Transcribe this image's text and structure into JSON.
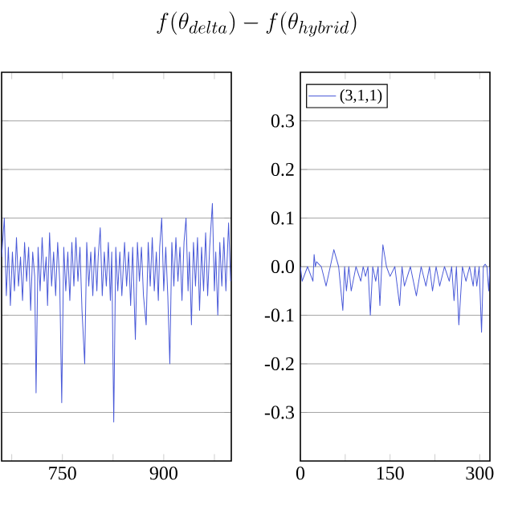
{
  "chart_data": [
    {
      "type": "line",
      "title": "f(\\theta_{delta})-f(\\theta_{hybrid})",
      "xlim": [
        660,
        1000
      ],
      "ylim": [
        -0.4,
        0.4
      ],
      "xticks": [
        {
          "value": 675,
          "label": null
        },
        750,
        {
          "value": 825,
          "label": null
        },
        900,
        {
          "value": 975,
          "label": null
        }
      ],
      "yticks": [
        -0.3,
        -0.2,
        -0.1,
        0,
        0.1,
        0.2,
        0.3
      ],
      "tick_labels": "x",
      "grid": "y",
      "marker": "none",
      "line_style": "solid",
      "series": [
        {
          "color": "#4a5ad8",
          "x": [
            660,
            664,
            667,
            670,
            673,
            676,
            679,
            682,
            685,
            688,
            691,
            694,
            697,
            700,
            703,
            706,
            709,
            711,
            714,
            717,
            720,
            723,
            726,
            728,
            731,
            734,
            737,
            740,
            743,
            746,
            749,
            752,
            755,
            758,
            761,
            764,
            767,
            770,
            773,
            776,
            779,
            783,
            786,
            789,
            792,
            795,
            798,
            801,
            803,
            806,
            809,
            812,
            815,
            818,
            821,
            823,
            826,
            829,
            832,
            835,
            838,
            842,
            845,
            848,
            851,
            854,
            858,
            861,
            864,
            867,
            870,
            874,
            877,
            880,
            883,
            886,
            889,
            892,
            894,
            897,
            900,
            903,
            906,
            909,
            912,
            915,
            918,
            921,
            924,
            927,
            930,
            933,
            936,
            938,
            941,
            944,
            947,
            950,
            953,
            956,
            959,
            962,
            965,
            968,
            972,
            975,
            977,
            980,
            983,
            986,
            989,
            992,
            996,
            999
          ],
          "values": [
            0.02,
            0.1,
            -0.06,
            0.04,
            -0.08,
            0.03,
            -0.05,
            0.06,
            -0.04,
            0.02,
            -0.07,
            0.05,
            -0.03,
            0.04,
            -0.09,
            0.03,
            -0.02,
            -0.26,
            0.04,
            -0.05,
            0.06,
            -0.03,
            0.02,
            -0.08,
            0.07,
            -0.04,
            0.03,
            -0.06,
            0.05,
            -0.03,
            -0.28,
            0.04,
            -0.05,
            0.03,
            -0.07,
            0.05,
            -0.04,
            0.06,
            -0.03,
            0.04,
            -0.09,
            -0.2,
            0.05,
            -0.04,
            0.03,
            -0.06,
            0.04,
            -0.05,
            0.02,
            0.08,
            -0.06,
            0.03,
            -0.04,
            0.05,
            -0.07,
            0.03,
            -0.32,
            0.04,
            -0.05,
            0.03,
            -0.06,
            0.05,
            -0.04,
            0.03,
            -0.08,
            0.04,
            -0.15,
            0.05,
            -0.03,
            0.04,
            -0.06,
            -0.12,
            0.05,
            -0.04,
            0.06,
            -0.05,
            0.03,
            -0.07,
            0.04,
            0.1,
            -0.05,
            0.04,
            -0.06,
            -0.2,
            0.05,
            -0.04,
            0.06,
            -0.03,
            0.04,
            -0.07,
            0.05,
            0.1,
            -0.05,
            0.03,
            -0.12,
            0.05,
            -0.04,
            0.06,
            -0.09,
            0.04,
            -0.05,
            0.07,
            -0.06,
            0.04,
            0.13,
            -0.05,
            0.03,
            -0.1,
            0.05,
            -0.04,
            0.06,
            -0.05,
            0.09,
            -0.03
          ]
        }
      ]
    },
    {
      "type": "line",
      "xlim": [
        0,
        317
      ],
      "ylim": [
        -0.4,
        0.4
      ],
      "xticks": [
        0,
        {
          "value": 75,
          "label": null
        },
        150,
        {
          "value": 225,
          "label": null
        },
        300
      ],
      "yticks": [
        -0.3,
        -0.2,
        -0.1,
        {
          "value": 0,
          "label": "0.0"
        },
        0.1,
        0.2,
        0.3
      ],
      "grid": "y",
      "legend": "top left",
      "marker": "none",
      "line_style": "solid",
      "series": [
        {
          "name": "(3,1,1)",
          "color": "#4a5ad8",
          "x": [
            0,
            3,
            12,
            21,
            23,
            25,
            27,
            35,
            43,
            50,
            56,
            64,
            71,
            74,
            77,
            81,
            85,
            93,
            101,
            105,
            109,
            113,
            117,
            121,
            126,
            130,
            133,
            136,
            138,
            144,
            150,
            158,
            166,
            170,
            174,
            184,
            194,
            202,
            210,
            216,
            221,
            227,
            233,
            241,
            249,
            253,
            257,
            261,
            265,
            271,
            277,
            283,
            289,
            292,
            295,
            299,
            303,
            306,
            309,
            312,
            315,
            317
          ],
          "values": [
            0,
            -0.03,
            0,
            -0.03,
            0.025,
            0,
            0.01,
            0,
            -0.04,
            0,
            0.035,
            0,
            -0.09,
            0,
            -0.05,
            0,
            -0.05,
            0,
            -0.03,
            0,
            -0.02,
            0,
            -0.1,
            0,
            -0.03,
            0,
            -0.08,
            0,
            0.045,
            0,
            -0.02,
            0,
            -0.08,
            0,
            -0.04,
            0,
            -0.06,
            0,
            -0.04,
            0,
            -0.05,
            0,
            -0.04,
            0,
            -0.03,
            0,
            -0.07,
            0,
            -0.12,
            0,
            -0.03,
            0,
            -0.04,
            0,
            -0.04,
            0,
            -0.135,
            0,
            0.005,
            0,
            -0.05,
            0
          ]
        }
      ]
    }
  ]
}
